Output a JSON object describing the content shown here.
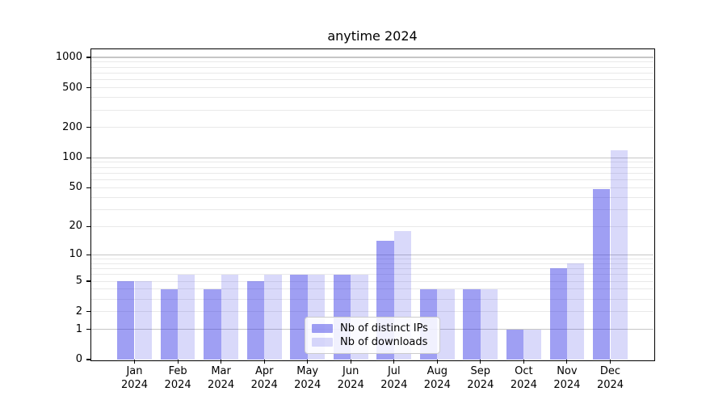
{
  "title": "anytime 2024",
  "chart_data": {
    "type": "bar",
    "title": "anytime 2024",
    "categories": [
      "Jan 2024",
      "Feb 2024",
      "Mar 2024",
      "Apr 2024",
      "May 2024",
      "Jun 2024",
      "Jul 2024",
      "Aug 2024",
      "Sep 2024",
      "Oct 2024",
      "Nov 2024",
      "Dec 2024"
    ],
    "series": [
      {
        "name": "Nb of distinct IPs",
        "color": "rgba(55,55,230,0.48)",
        "values": [
          5,
          4,
          4,
          5,
          6,
          6,
          14,
          4,
          4,
          1,
          7,
          48
        ]
      },
      {
        "name": "Nb of downloads",
        "color": "rgba(55,55,230,0.19)",
        "values": [
          5,
          6,
          6,
          6,
          6,
          6,
          18,
          4,
          4,
          1,
          8,
          119
        ]
      }
    ],
    "xlabel": "",
    "ylabel": "",
    "yscale": "log-like (position proportional to log10(1+v))",
    "ylim": [
      0,
      1200
    ],
    "y_ticks": [
      1000,
      500,
      200,
      100,
      50,
      20,
      10,
      5,
      2,
      1,
      0
    ],
    "grid": "horizontal",
    "grid_major_values": [
      1,
      10,
      100,
      1000
    ],
    "grid_minor_values": [
      2,
      3,
      4,
      5,
      6,
      7,
      8,
      9,
      20,
      30,
      40,
      50,
      60,
      70,
      80,
      90,
      200,
      300,
      400,
      500,
      600,
      700,
      800,
      900
    ],
    "legend_position": "lower center"
  },
  "colors": {
    "background": "#ffffff",
    "axis": "#000000",
    "text": "#000000",
    "grid_major": "#c6c6c6",
    "grid_minor": "#e9e9e9",
    "bar_distinct_ips_solid": "#9f9ff3",
    "bar_downloads_solid": "#d9d9fa"
  }
}
